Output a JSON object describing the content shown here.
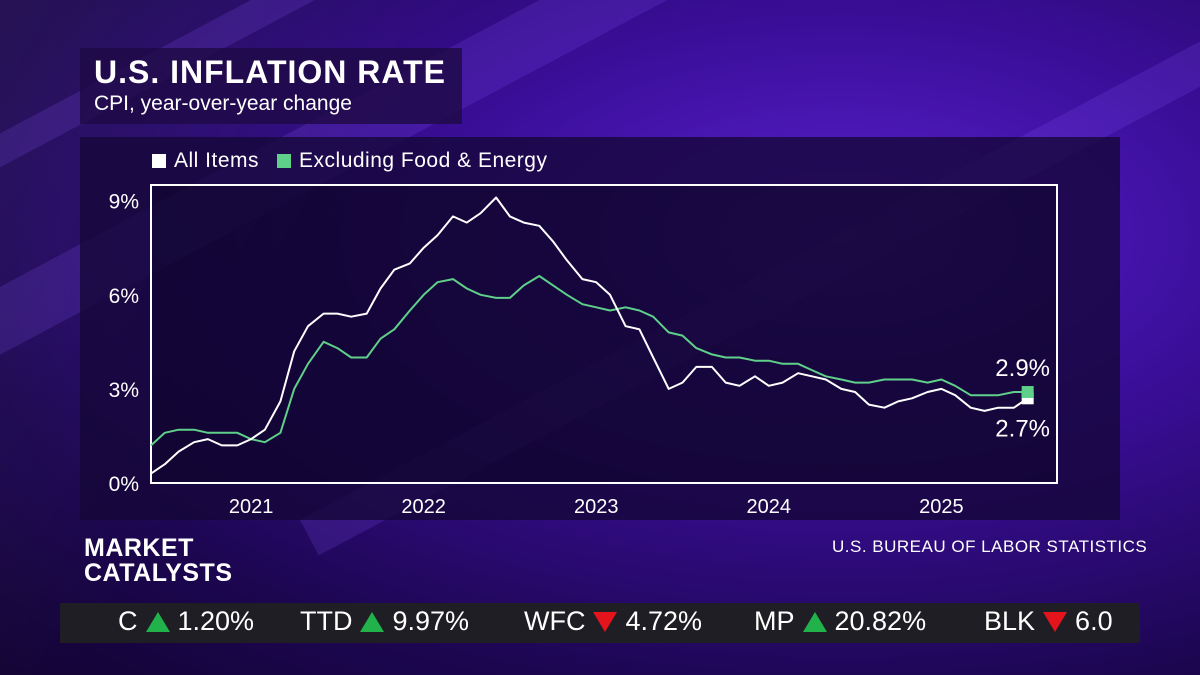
{
  "header": {
    "title": "U.S. INFLATION RATE",
    "subtitle": "CPI, year-over-year change"
  },
  "legend": {
    "items": [
      {
        "label": "All Items",
        "color": "#ffffff"
      },
      {
        "label": "Excluding Food & Energy",
        "color": "#5fd08a"
      }
    ]
  },
  "chart_data": {
    "type": "line",
    "title": "U.S. INFLATION RATE",
    "subtitle": "CPI, year-over-year change",
    "xlabel": "",
    "ylabel": "",
    "x_ticks": [
      "2021",
      "2022",
      "2023",
      "2024",
      "2025"
    ],
    "y_ticks": [
      "0%",
      "3%",
      "6%",
      "9%"
    ],
    "ylim": [
      0,
      9.5
    ],
    "xlim": [
      2020.42,
      2025.67
    ],
    "grid": false,
    "legend_position": "top-left",
    "series": [
      {
        "name": "All Items",
        "color": "#ffffff",
        "end_label": "2.7%",
        "points": [
          [
            2020.42,
            0.3
          ],
          [
            2020.5,
            0.6
          ],
          [
            2020.58,
            1.0
          ],
          [
            2020.67,
            1.3
          ],
          [
            2020.75,
            1.4
          ],
          [
            2020.83,
            1.2
          ],
          [
            2020.92,
            1.2
          ],
          [
            2021.0,
            1.4
          ],
          [
            2021.08,
            1.7
          ],
          [
            2021.17,
            2.6
          ],
          [
            2021.25,
            4.2
          ],
          [
            2021.33,
            5.0
          ],
          [
            2021.42,
            5.4
          ],
          [
            2021.5,
            5.4
          ],
          [
            2021.58,
            5.3
          ],
          [
            2021.67,
            5.4
          ],
          [
            2021.75,
            6.2
          ],
          [
            2021.83,
            6.8
          ],
          [
            2021.92,
            7.0
          ],
          [
            2022.0,
            7.5
          ],
          [
            2022.08,
            7.9
          ],
          [
            2022.17,
            8.5
          ],
          [
            2022.25,
            8.3
          ],
          [
            2022.33,
            8.6
          ],
          [
            2022.42,
            9.1
          ],
          [
            2022.5,
            8.5
          ],
          [
            2022.58,
            8.3
          ],
          [
            2022.67,
            8.2
          ],
          [
            2022.75,
            7.7
          ],
          [
            2022.83,
            7.1
          ],
          [
            2022.92,
            6.5
          ],
          [
            2023.0,
            6.4
          ],
          [
            2023.08,
            6.0
          ],
          [
            2023.17,
            5.0
          ],
          [
            2023.25,
            4.9
          ],
          [
            2023.33,
            4.0
          ],
          [
            2023.42,
            3.0
          ],
          [
            2023.5,
            3.2
          ],
          [
            2023.58,
            3.7
          ],
          [
            2023.67,
            3.7
          ],
          [
            2023.75,
            3.2
          ],
          [
            2023.83,
            3.1
          ],
          [
            2023.92,
            3.4
          ],
          [
            2024.0,
            3.1
          ],
          [
            2024.08,
            3.2
          ],
          [
            2024.17,
            3.5
          ],
          [
            2024.25,
            3.4
          ],
          [
            2024.33,
            3.3
          ],
          [
            2024.42,
            3.0
          ],
          [
            2024.5,
            2.9
          ],
          [
            2024.58,
            2.5
          ],
          [
            2024.67,
            2.4
          ],
          [
            2024.75,
            2.6
          ],
          [
            2024.83,
            2.7
          ],
          [
            2024.92,
            2.9
          ],
          [
            2025.0,
            3.0
          ],
          [
            2025.08,
            2.8
          ],
          [
            2025.17,
            2.4
          ],
          [
            2025.25,
            2.3
          ],
          [
            2025.33,
            2.4
          ],
          [
            2025.42,
            2.4
          ],
          [
            2025.5,
            2.7
          ]
        ]
      },
      {
        "name": "Excluding Food & Energy",
        "color": "#5fd08a",
        "end_label": "2.9%",
        "points": [
          [
            2020.42,
            1.2
          ],
          [
            2020.5,
            1.6
          ],
          [
            2020.58,
            1.7
          ],
          [
            2020.67,
            1.7
          ],
          [
            2020.75,
            1.6
          ],
          [
            2020.83,
            1.6
          ],
          [
            2020.92,
            1.6
          ],
          [
            2021.0,
            1.4
          ],
          [
            2021.08,
            1.3
          ],
          [
            2021.17,
            1.6
          ],
          [
            2021.25,
            3.0
          ],
          [
            2021.33,
            3.8
          ],
          [
            2021.42,
            4.5
          ],
          [
            2021.5,
            4.3
          ],
          [
            2021.58,
            4.0
          ],
          [
            2021.67,
            4.0
          ],
          [
            2021.75,
            4.6
          ],
          [
            2021.83,
            4.9
          ],
          [
            2021.92,
            5.5
          ],
          [
            2022.0,
            6.0
          ],
          [
            2022.08,
            6.4
          ],
          [
            2022.17,
            6.5
          ],
          [
            2022.25,
            6.2
          ],
          [
            2022.33,
            6.0
          ],
          [
            2022.42,
            5.9
          ],
          [
            2022.5,
            5.9
          ],
          [
            2022.58,
            6.3
          ],
          [
            2022.67,
            6.6
          ],
          [
            2022.75,
            6.3
          ],
          [
            2022.83,
            6.0
          ],
          [
            2022.92,
            5.7
          ],
          [
            2023.0,
            5.6
          ],
          [
            2023.08,
            5.5
          ],
          [
            2023.17,
            5.6
          ],
          [
            2023.25,
            5.5
          ],
          [
            2023.33,
            5.3
          ],
          [
            2023.42,
            4.8
          ],
          [
            2023.5,
            4.7
          ],
          [
            2023.58,
            4.3
          ],
          [
            2023.67,
            4.1
          ],
          [
            2023.75,
            4.0
          ],
          [
            2023.83,
            4.0
          ],
          [
            2023.92,
            3.9
          ],
          [
            2024.0,
            3.9
          ],
          [
            2024.08,
            3.8
          ],
          [
            2024.17,
            3.8
          ],
          [
            2024.25,
            3.6
          ],
          [
            2024.33,
            3.4
          ],
          [
            2024.42,
            3.3
          ],
          [
            2024.5,
            3.2
          ],
          [
            2024.58,
            3.2
          ],
          [
            2024.67,
            3.3
          ],
          [
            2024.75,
            3.3
          ],
          [
            2024.83,
            3.3
          ],
          [
            2024.92,
            3.2
          ],
          [
            2025.0,
            3.3
          ],
          [
            2025.08,
            3.1
          ],
          [
            2025.17,
            2.8
          ],
          [
            2025.25,
            2.8
          ],
          [
            2025.33,
            2.8
          ],
          [
            2025.42,
            2.9
          ],
          [
            2025.5,
            2.9
          ]
        ]
      }
    ]
  },
  "footer": {
    "show_line1": "MARKET",
    "show_line2": "CATALYSTS",
    "source": "U.S. BUREAU OF LABOR STATISTICS"
  },
  "ticker": [
    {
      "symbol": "C",
      "direction": "up",
      "change": "1.20%"
    },
    {
      "symbol": "TTD",
      "direction": "up",
      "change": "9.97%"
    },
    {
      "symbol": "WFC",
      "direction": "down",
      "change": "4.72%"
    },
    {
      "symbol": "MP",
      "direction": "up",
      "change": "20.82%"
    },
    {
      "symbol": "BLK",
      "direction": "down",
      "change": "6.0"
    }
  ]
}
